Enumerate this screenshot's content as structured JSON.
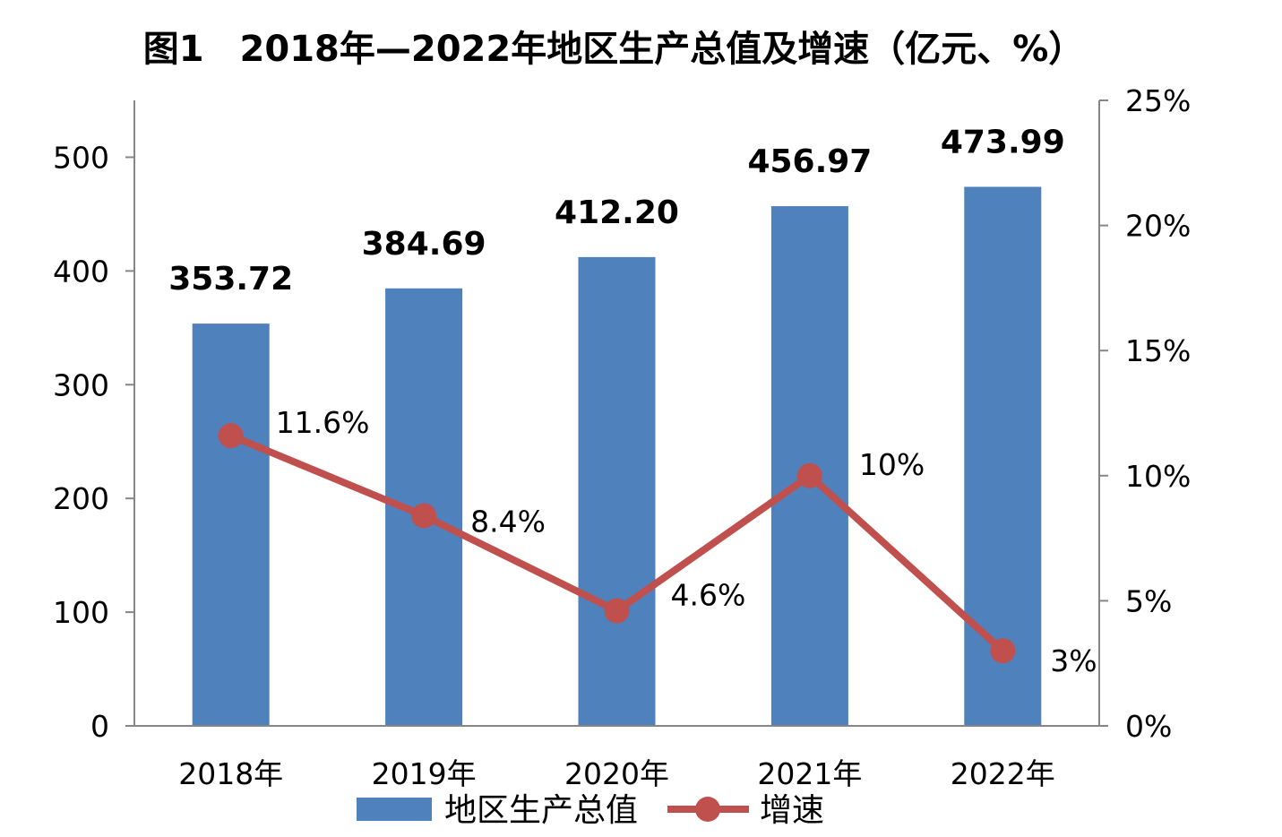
{
  "chart_data": {
    "type": "bar",
    "title": "图1　2018年—2022年地区生产总值及增速（亿元、%）",
    "categories": [
      "2018年",
      "2019年",
      "2020年",
      "2021年",
      "2022年"
    ],
    "series": [
      {
        "name": "地区生产总值",
        "type": "bar",
        "axis": "left",
        "values": [
          353.72,
          384.69,
          412.2,
          456.97,
          473.99
        ],
        "labels": [
          "353.72",
          "384.69",
          "412.20",
          "456.97",
          "473.99"
        ],
        "color": "#4f81bd"
      },
      {
        "name": "增速",
        "type": "line",
        "axis": "right",
        "values": [
          11.6,
          8.4,
          4.6,
          10,
          3
        ],
        "labels": [
          "11.6%",
          "8.4%",
          "4.6%",
          "10%",
          "3%"
        ],
        "color": "#c0504d"
      }
    ],
    "y_left": {
      "min": 0,
      "max": 550,
      "ticks": [
        0,
        100,
        200,
        300,
        400,
        500
      ],
      "tick_labels": [
        "0",
        "100",
        "200",
        "300",
        "400",
        "500"
      ]
    },
    "y_right": {
      "min": 0,
      "max": 25,
      "ticks": [
        0,
        5,
        10,
        15,
        20,
        25
      ],
      "tick_labels": [
        "0%",
        "5%",
        "10%",
        "15%",
        "20%",
        "25%"
      ]
    },
    "grid": false,
    "legend": "bottom"
  }
}
